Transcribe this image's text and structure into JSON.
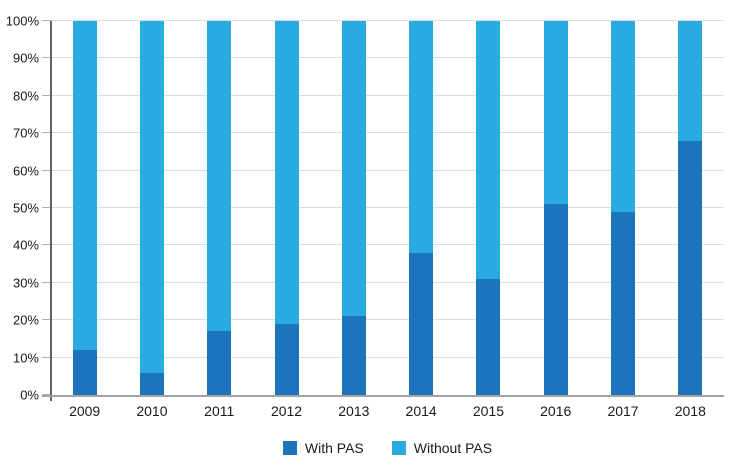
{
  "chart_data": {
    "type": "bar",
    "stacked": true,
    "stack_total": 100,
    "categories": [
      "2009",
      "2010",
      "2011",
      "2012",
      "2013",
      "2014",
      "2015",
      "2016",
      "2017",
      "2018"
    ],
    "series": [
      {
        "name": "With PAS",
        "color": "#1C75BC",
        "values": [
          12,
          6,
          17,
          19,
          21,
          38,
          31,
          51,
          49,
          68
        ]
      },
      {
        "name": "Without PAS",
        "color": "#29ABE2",
        "values": [
          88,
          94,
          83,
          81,
          79,
          62,
          69,
          49,
          51,
          32
        ]
      }
    ],
    "xlabel": "",
    "ylabel": "",
    "ylim": [
      0,
      100
    ],
    "yticks": [
      0,
      10,
      20,
      30,
      40,
      50,
      60,
      70,
      80,
      90,
      100
    ],
    "ytick_suffix": "%",
    "grid": "horizontal",
    "legend_position": "bottom-center",
    "colors": {
      "gridline": "#dddddd",
      "y_axis_line": "#636363",
      "x_axis_line": "#a2a2a2",
      "text": "#1a1a1a",
      "background": "#ffffff"
    }
  }
}
